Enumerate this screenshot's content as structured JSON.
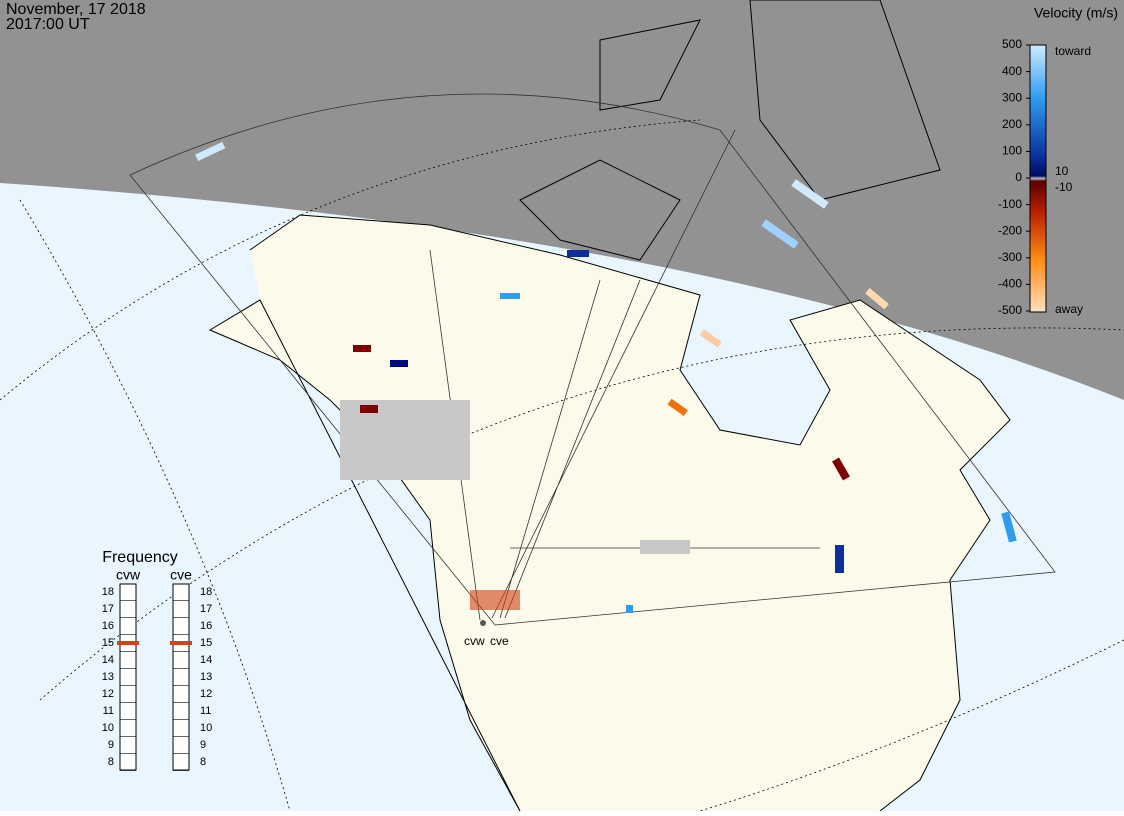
{
  "header": {
    "date": "November, 17 2018",
    "time": "2017:00 UT"
  },
  "velocity_scale": {
    "title": "Velocity (m/s)",
    "ticks": [
      500,
      400,
      300,
      200,
      100,
      0,
      -100,
      -200,
      -300,
      -400,
      -500
    ],
    "toward": "toward",
    "away": "away",
    "inner_ticks": [
      10,
      -10
    ]
  },
  "frequency": {
    "title": "Frequency",
    "radars": [
      {
        "name": "cvw",
        "selected": 15
      },
      {
        "name": "cve",
        "selected": 15
      }
    ],
    "ticks": [
      18,
      17,
      16,
      15,
      14,
      13,
      12,
      11,
      10,
      9,
      8
    ]
  },
  "radar_sites": [
    "cvw",
    "cve"
  ]
}
